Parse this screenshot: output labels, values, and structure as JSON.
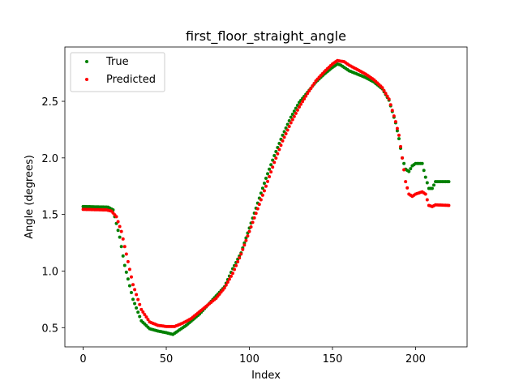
{
  "chart_data": {
    "type": "scatter",
    "title": "first_floor_straight_angle",
    "xlabel": "Index",
    "ylabel": "Angle (degrees)",
    "xlim": [
      -11,
      231
    ],
    "ylim": [
      0.33,
      2.98
    ],
    "xticks": [
      0,
      50,
      100,
      150,
      200
    ],
    "yticks": [
      0.5,
      1.0,
      1.5,
      2.0,
      2.5
    ],
    "ytick_labels": [
      "0.5",
      "1.0",
      "1.5",
      "2.0",
      "2.5"
    ],
    "grid": false,
    "legend_position": "top-left",
    "series": [
      {
        "name": "True",
        "color": "#008000",
        "anchors": [
          [
            0,
            1.57
          ],
          [
            15,
            1.565
          ],
          [
            18,
            1.54
          ],
          [
            22,
            1.3
          ],
          [
            25,
            1.05
          ],
          [
            30,
            0.75
          ],
          [
            35,
            0.56
          ],
          [
            40,
            0.49
          ],
          [
            45,
            0.47
          ],
          [
            50,
            0.455
          ],
          [
            54,
            0.44
          ],
          [
            58,
            0.48
          ],
          [
            62,
            0.52
          ],
          [
            70,
            0.62
          ],
          [
            80,
            0.78
          ],
          [
            85,
            0.86
          ],
          [
            90,
            1.02
          ],
          [
            95,
            1.16
          ],
          [
            100,
            1.38
          ],
          [
            105,
            1.6
          ],
          [
            110,
            1.82
          ],
          [
            115,
            2.02
          ],
          [
            120,
            2.2
          ],
          [
            125,
            2.36
          ],
          [
            130,
            2.49
          ],
          [
            135,
            2.58
          ],
          [
            140,
            2.67
          ],
          [
            145,
            2.74
          ],
          [
            150,
            2.8
          ],
          [
            153,
            2.83
          ],
          [
            155,
            2.82
          ],
          [
            160,
            2.77
          ],
          [
            165,
            2.74
          ],
          [
            170,
            2.71
          ],
          [
            175,
            2.67
          ],
          [
            180,
            2.61
          ],
          [
            184,
            2.51
          ],
          [
            188,
            2.31
          ],
          [
            190,
            2.17
          ],
          [
            192,
            2.0
          ],
          [
            194,
            1.9
          ],
          [
            196,
            1.88
          ],
          [
            198,
            1.93
          ],
          [
            200,
            1.95
          ],
          [
            204,
            1.95
          ],
          [
            206,
            1.83
          ],
          [
            208,
            1.73
          ],
          [
            210,
            1.73
          ],
          [
            212,
            1.79
          ],
          [
            220,
            1.79
          ]
        ]
      },
      {
        "name": "Predicted",
        "color": "#ff0000",
        "anchors": [
          [
            0,
            1.545
          ],
          [
            14,
            1.54
          ],
          [
            17,
            1.53
          ],
          [
            20,
            1.48
          ],
          [
            23,
            1.35
          ],
          [
            26,
            1.15
          ],
          [
            30,
            0.88
          ],
          [
            35,
            0.66
          ],
          [
            40,
            0.55
          ],
          [
            45,
            0.52
          ],
          [
            50,
            0.51
          ],
          [
            55,
            0.51
          ],
          [
            60,
            0.54
          ],
          [
            65,
            0.58
          ],
          [
            70,
            0.64
          ],
          [
            75,
            0.7
          ],
          [
            80,
            0.76
          ],
          [
            85,
            0.85
          ],
          [
            90,
            0.98
          ],
          [
            95,
            1.15
          ],
          [
            100,
            1.35
          ],
          [
            105,
            1.55
          ],
          [
            110,
            1.75
          ],
          [
            115,
            1.96
          ],
          [
            120,
            2.15
          ],
          [
            125,
            2.31
          ],
          [
            130,
            2.45
          ],
          [
            135,
            2.57
          ],
          [
            140,
            2.68
          ],
          [
            145,
            2.76
          ],
          [
            150,
            2.83
          ],
          [
            153,
            2.86
          ],
          [
            157,
            2.85
          ],
          [
            160,
            2.82
          ],
          [
            165,
            2.78
          ],
          [
            170,
            2.74
          ],
          [
            175,
            2.69
          ],
          [
            180,
            2.62
          ],
          [
            184,
            2.52
          ],
          [
            188,
            2.32
          ],
          [
            190,
            2.2
          ],
          [
            192,
            2.0
          ],
          [
            194,
            1.79
          ],
          [
            196,
            1.68
          ],
          [
            198,
            1.66
          ],
          [
            200,
            1.68
          ],
          [
            204,
            1.7
          ],
          [
            206,
            1.68
          ],
          [
            208,
            1.58
          ],
          [
            210,
            1.57
          ],
          [
            212,
            1.585
          ],
          [
            220,
            1.58
          ]
        ]
      }
    ]
  }
}
